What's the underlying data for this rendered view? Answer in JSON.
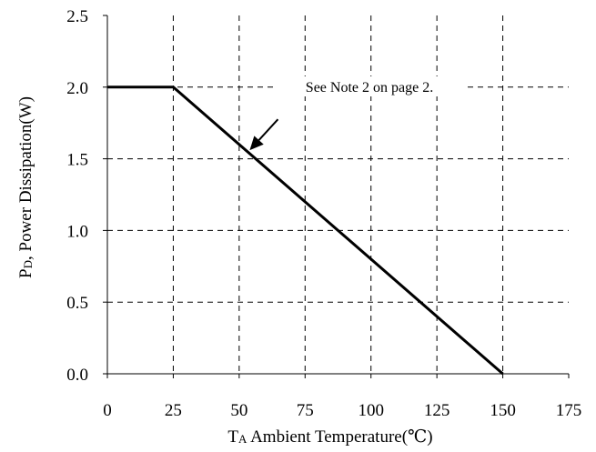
{
  "chart_data": {
    "type": "line",
    "xlabel_main": "T",
    "xlabel_sub": "A",
    "xlabel_rest": " Ambient Temperature(℃)",
    "ylabel_main": "P",
    "ylabel_sub": "D",
    "ylabel_rest": ", Power Dissipation(W)",
    "xlim": [
      0,
      175
    ],
    "ylim": [
      0.0,
      2.5
    ],
    "x_ticks": [
      "0",
      "25",
      "50",
      "75",
      "100",
      "125",
      "150",
      "175"
    ],
    "y_ticks": [
      "0.0",
      "0.5",
      "1.0",
      "1.5",
      "2.0",
      "2.5"
    ],
    "grid": true,
    "grid_style": "dashed",
    "series": [
      {
        "x": [
          0,
          25,
          150
        ],
        "y": [
          2.0,
          2.0,
          0.0
        ],
        "color": "#000000"
      }
    ],
    "annotation": {
      "text": "See Note 2 on page 2.",
      "arrow_target": [
        54,
        1.56
      ]
    }
  }
}
